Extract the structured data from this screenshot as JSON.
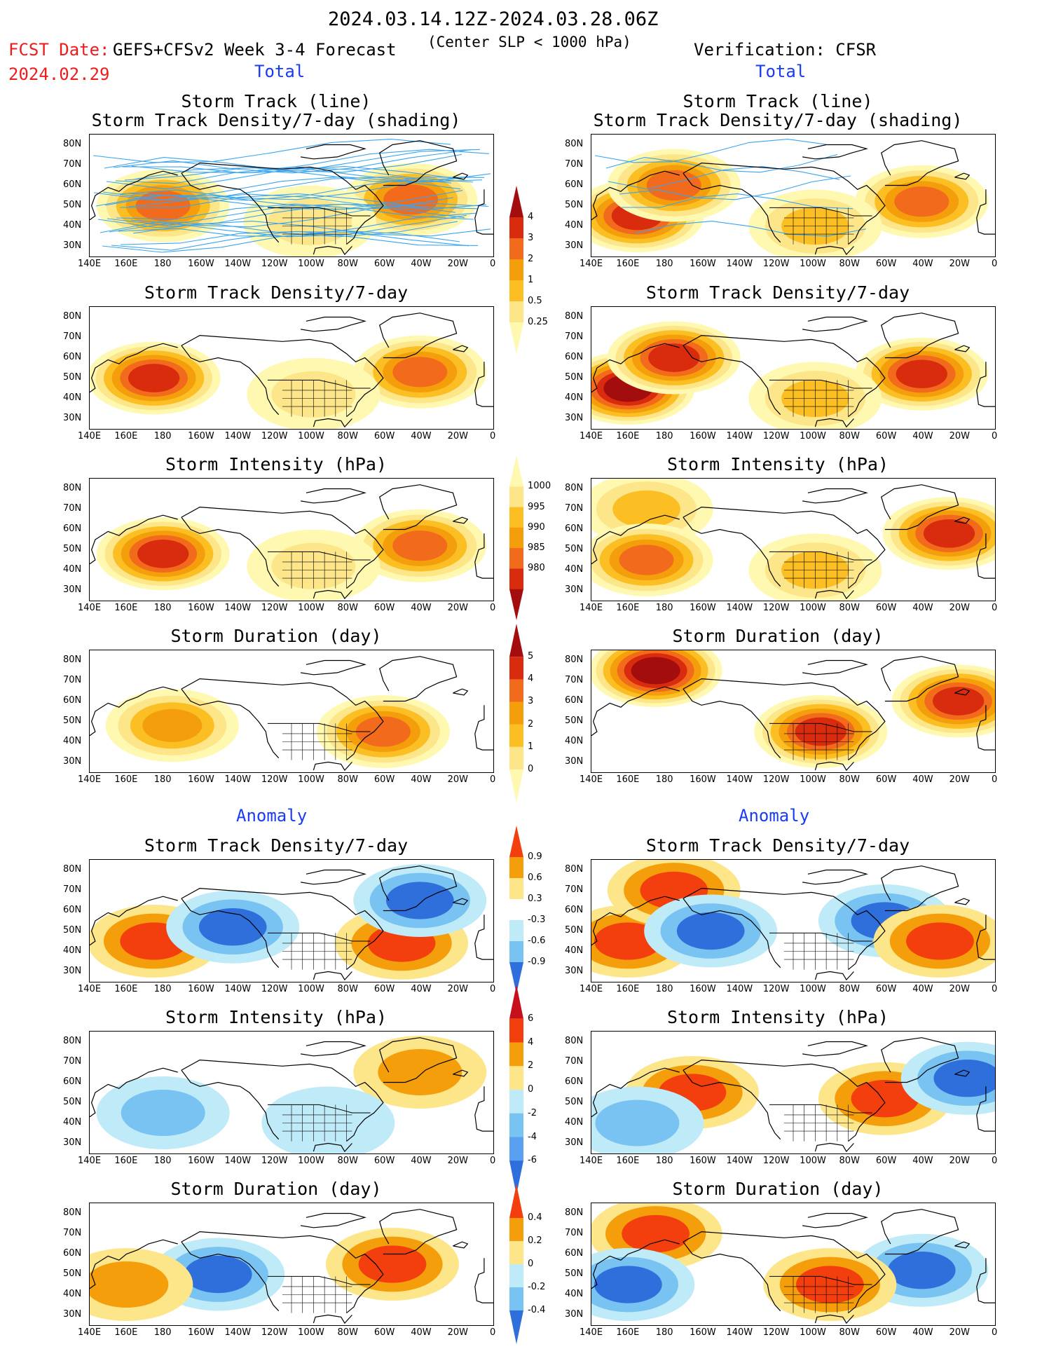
{
  "header": {
    "period": "2024.03.14.12Z-2024.03.28.06Z",
    "fcst_label": "FCST Date:",
    "fcst_date": "2024.02.29",
    "forecast_desc": "GEFS+CFSv2 Week 3-4 Forecast",
    "criterion": "(Center SLP < 1000 hPa)",
    "verification": "Verification: CFSR"
  },
  "sections": {
    "total": "Total",
    "anomaly": "Anomaly"
  },
  "axes": {
    "lat_ticks": [
      "80N",
      "70N",
      "60N",
      "50N",
      "40N",
      "30N"
    ],
    "lon_ticks": [
      "140E",
      "160E",
      "180",
      "160W",
      "140W",
      "120W",
      "100W",
      "80W",
      "60W",
      "40W",
      "20W",
      "0"
    ]
  },
  "panel_titles": {
    "track_line": "Storm Track (line)",
    "track_shading": "Storm Track Density/7-day (shading)",
    "density": "Storm Track Density/7-day",
    "intensity": "Storm Intensity (hPa)",
    "duration": "Storm Duration (day)"
  },
  "colorbars": {
    "density": [
      "4",
      "3",
      "2",
      "1",
      "0.5",
      "0.25"
    ],
    "intensity": [
      "1000",
      "995",
      "990",
      "985",
      "980"
    ],
    "duration": [
      "5",
      "4",
      "3",
      "2",
      "1",
      "0"
    ],
    "density_anom": [
      "0.9",
      "0.6",
      "0.3",
      "-0.3",
      "-0.6",
      "-0.9"
    ],
    "intensity_anom": [
      "6",
      "4",
      "2",
      "0",
      "-2",
      "-4",
      "-6"
    ],
    "duration_anom": [
      "0.4",
      "0.2",
      "0",
      "-0.2",
      "-0.4"
    ]
  },
  "colors": {
    "pos_scale": [
      "#fff8b0",
      "#fde68a",
      "#fbbf24",
      "#f59e0b",
      "#f26b1d",
      "#d92b0e",
      "#a30d0d"
    ],
    "anom_pos": [
      "#fde68a",
      "#f59e0b",
      "#f33e0e"
    ],
    "anom_neg": [
      "#bfeaf7",
      "#79c3f2",
      "#2f6fdc"
    ],
    "title_blue": "#1a3cf0",
    "fcst_red": "#ee1c1c",
    "track_line": "#3aa4f0",
    "track_dot": "#c0281e"
  },
  "chart_data": [
    {
      "type": "heatmap",
      "column": "forecast",
      "row": 1,
      "title": "Storm Track (line) / Storm Track Density/7-day (shading)",
      "scale": "density",
      "blobs": [
        {
          "lon": 180,
          "lat": 50,
          "level": 5
        },
        {
          "lon": 315,
          "lat": 53,
          "level": 5
        },
        {
          "lon": 260,
          "lat": 42,
          "level": 2
        }
      ]
    },
    {
      "type": "heatmap",
      "column": "forecast",
      "row": 2,
      "title": "Storm Track Density/7-day",
      "scale": "density",
      "blobs": [
        {
          "lon": 175,
          "lat": 50,
          "level": 6
        },
        {
          "lon": 320,
          "lat": 53,
          "level": 5
        },
        {
          "lon": 262,
          "lat": 42,
          "level": 2
        }
      ]
    },
    {
      "type": "heatmap",
      "column": "forecast",
      "row": 3,
      "title": "Storm Intensity (hPa)",
      "scale": "intensity",
      "blobs": [
        {
          "lon": 180,
          "lat": 48,
          "level": 6
        },
        {
          "lon": 320,
          "lat": 52,
          "level": 5
        },
        {
          "lon": 262,
          "lat": 42,
          "level": 2
        }
      ]
    },
    {
      "type": "heatmap",
      "column": "forecast",
      "row": 4,
      "title": "Storm Duration (day)",
      "scale": "duration",
      "blobs": [
        {
          "lon": 185,
          "lat": 48,
          "level": 4
        },
        {
          "lon": 300,
          "lat": 45,
          "level": 5
        }
      ]
    },
    {
      "type": "heatmap",
      "column": "forecast",
      "row": 5,
      "title": "Storm Track Density/7-day anomaly",
      "scale": "density_anom",
      "blobs": [
        {
          "lon": 175,
          "lat": 45,
          "level": 3
        },
        {
          "lon": 310,
          "lat": 44,
          "level": 3
        },
        {
          "lon": 320,
          "lat": 65,
          "level": -3
        },
        {
          "lon": 218,
          "lat": 52,
          "level": -3
        }
      ]
    },
    {
      "type": "heatmap",
      "column": "forecast",
      "row": 6,
      "title": "Storm Intensity (hPa) anomaly",
      "scale": "intensity_anom",
      "blobs": [
        {
          "lon": 180,
          "lat": 45,
          "level": -2
        },
        {
          "lon": 320,
          "lat": 65,
          "level": 2
        },
        {
          "lon": 270,
          "lat": 40,
          "level": -1
        }
      ]
    },
    {
      "type": "heatmap",
      "column": "forecast",
      "row": 7,
      "title": "Storm Duration (day) anomaly",
      "scale": "duration_anom",
      "blobs": [
        {
          "lon": 305,
          "lat": 55,
          "level": 3
        },
        {
          "lon": 210,
          "lat": 50,
          "level": -3
        },
        {
          "lon": 160,
          "lat": 45,
          "level": 2
        }
      ]
    },
    {
      "type": "heatmap",
      "column": "verification",
      "row": 1,
      "title": "Storm Track (line) / Storm Track Density/7-day (shading)",
      "scale": "density",
      "blobs": [
        {
          "lon": 165,
          "lat": 45,
          "level": 6
        },
        {
          "lon": 185,
          "lat": 60,
          "level": 5
        },
        {
          "lon": 320,
          "lat": 52,
          "level": 5
        },
        {
          "lon": 262,
          "lat": 40,
          "level": 3
        }
      ]
    },
    {
      "type": "heatmap",
      "column": "verification",
      "row": 2,
      "title": "Storm Track Density/7-day",
      "scale": "density",
      "blobs": [
        {
          "lon": 160,
          "lat": 45,
          "level": 7
        },
        {
          "lon": 185,
          "lat": 60,
          "level": 6
        },
        {
          "lon": 320,
          "lat": 52,
          "level": 6
        },
        {
          "lon": 262,
          "lat": 40,
          "level": 3
        }
      ]
    },
    {
      "type": "heatmap",
      "column": "verification",
      "row": 3,
      "title": "Storm Intensity (hPa)",
      "scale": "intensity",
      "blobs": [
        {
          "lon": 170,
          "lat": 70,
          "level": 3
        },
        {
          "lon": 170,
          "lat": 45,
          "level": 5
        },
        {
          "lon": 335,
          "lat": 58,
          "level": 6
        },
        {
          "lon": 262,
          "lat": 40,
          "level": 3
        }
      ]
    },
    {
      "type": "heatmap",
      "column": "verification",
      "row": 4,
      "title": "Storm Duration (day)",
      "scale": "duration",
      "blobs": [
        {
          "lon": 175,
          "lat": 75,
          "level": 7
        },
        {
          "lon": 265,
          "lat": 45,
          "level": 6
        },
        {
          "lon": 340,
          "lat": 60,
          "level": 6
        }
      ]
    },
    {
      "type": "heatmap",
      "column": "verification",
      "row": 5,
      "title": "Storm Track Density/7-day anomaly",
      "scale": "density_anom",
      "blobs": [
        {
          "lon": 160,
          "lat": 45,
          "level": 3
        },
        {
          "lon": 185,
          "lat": 70,
          "level": 3
        },
        {
          "lon": 205,
          "lat": 50,
          "level": -3
        },
        {
          "lon": 300,
          "lat": 55,
          "level": -3
        },
        {
          "lon": 330,
          "lat": 45,
          "level": 3
        }
      ]
    },
    {
      "type": "heatmap",
      "column": "verification",
      "row": 6,
      "title": "Storm Intensity (hPa) anomaly",
      "scale": "intensity_anom",
      "blobs": [
        {
          "lon": 195,
          "lat": 55,
          "level": 3
        },
        {
          "lon": 165,
          "lat": 40,
          "level": -2
        },
        {
          "lon": 300,
          "lat": 52,
          "level": 3
        },
        {
          "lon": 345,
          "lat": 62,
          "level": -3
        }
      ]
    },
    {
      "type": "heatmap",
      "column": "verification",
      "row": 7,
      "title": "Storm Duration (day) anomaly",
      "scale": "duration_anom",
      "blobs": [
        {
          "lon": 175,
          "lat": 70,
          "level": 3
        },
        {
          "lon": 160,
          "lat": 45,
          "level": -3
        },
        {
          "lon": 320,
          "lat": 52,
          "level": -3
        },
        {
          "lon": 270,
          "lat": 45,
          "level": 3
        }
      ]
    }
  ]
}
